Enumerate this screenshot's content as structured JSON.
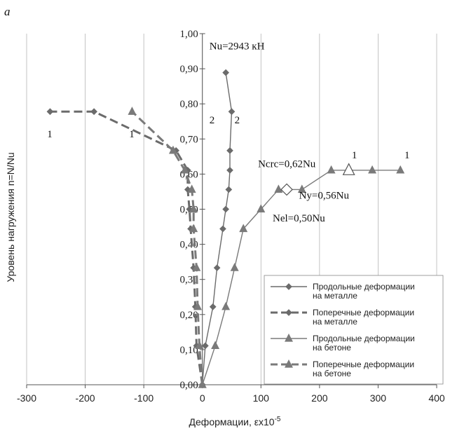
{
  "panel_label": "a",
  "chart_data": {
    "type": "line",
    "xlabel": "Деформации, εх10",
    "xlabel_sup": "-5",
    "ylabel": "Уровень нагружения n=N/Nu",
    "xlim": [
      -300,
      400
    ],
    "ylim": [
      0,
      1.0
    ],
    "x_ticks": [
      "-300",
      "-200",
      "-100",
      "0",
      "100",
      "200",
      "300",
      "400"
    ],
    "y_ticks": [
      "0,00",
      "0,10",
      "0,20",
      "0,30",
      "0,40",
      "0,50",
      "0,60",
      "0,70",
      "0,80",
      "0,90",
      "1,00"
    ],
    "grid": "x-major vertical",
    "legend_position": "lower-right",
    "series": [
      {
        "name": "Продольные деформации на металле",
        "legend_lines": [
          "Продольные деформации",
          "на металле"
        ],
        "color": "#6b6b6b",
        "line": "solid",
        "marker": "diamond",
        "points": [
          [
            0,
            0
          ],
          [
            5,
            0.111
          ],
          [
            18,
            0.222
          ],
          [
            25,
            0.333
          ],
          [
            35,
            0.444
          ],
          [
            40,
            0.5
          ],
          [
            45,
            0.556
          ],
          [
            47,
            0.611
          ],
          [
            47,
            0.667
          ],
          [
            50,
            0.778
          ],
          [
            40,
            0.889
          ]
        ]
      },
      {
        "name": "Поперечные деформации на металле",
        "legend_lines": [
          "Поперечные деформации",
          "на металле"
        ],
        "color": "#6b6b6b",
        "line": "dashed",
        "marker": "diamond",
        "points": [
          [
            0,
            0
          ],
          [
            -10,
            0.111
          ],
          [
            -12,
            0.222
          ],
          [
            -15,
            0.333
          ],
          [
            -20,
            0.444
          ],
          [
            -22,
            0.5
          ],
          [
            -25,
            0.556
          ],
          [
            -25,
            0.611
          ],
          [
            -45,
            0.667
          ],
          [
            -185,
            0.778
          ],
          [
            -260,
            0.778
          ]
        ]
      },
      {
        "name": "Продольные деформации на бетоне",
        "legend_lines": [
          "Продольные деформации",
          "на бетоне"
        ],
        "color": "#7a7a7a",
        "line": "solid",
        "marker": "triangle",
        "points": [
          [
            0,
            0
          ],
          [
            22,
            0.111
          ],
          [
            40,
            0.222
          ],
          [
            55,
            0.333
          ],
          [
            70,
            0.444
          ],
          [
            100,
            0.5
          ],
          [
            130,
            0.556
          ],
          [
            170,
            0.556
          ],
          [
            220,
            0.611
          ],
          [
            250,
            0.611
          ],
          [
            290,
            0.611
          ],
          [
            338,
            0.611
          ]
        ]
      },
      {
        "name": "Поперечные деформации на бетоне",
        "legend_lines": [
          "Поперечные деформации",
          "на бетоне"
        ],
        "color": "#7a7a7a",
        "line": "dashed",
        "marker": "triangle",
        "points": [
          [
            0,
            0
          ],
          [
            -5,
            0.111
          ],
          [
            -8,
            0.222
          ],
          [
            -10,
            0.333
          ],
          [
            -15,
            0.444
          ],
          [
            -15,
            0.5
          ],
          [
            -18,
            0.556
          ],
          [
            -30,
            0.611
          ],
          [
            -50,
            0.667
          ],
          [
            -120,
            0.778
          ]
        ]
      }
    ],
    "open_markers": [
      {
        "shape": "diamond",
        "x": 144,
        "y": 0.556
      },
      {
        "shape": "triangle",
        "x": 250,
        "y": 0.611
      }
    ],
    "annotations": [
      {
        "text": "Nu=2943 кН",
        "x": 12,
        "y": 0.955
      },
      {
        "text": "1",
        "x": -265,
        "y": 0.705
      },
      {
        "text": "1",
        "x": -125,
        "y": 0.705
      },
      {
        "text": "2",
        "x": 12,
        "y": 0.745
      },
      {
        "text": "2",
        "x": 55,
        "y": 0.745
      },
      {
        "text": "Ncrc=0,62Nu",
        "x": 95,
        "y": 0.62
      },
      {
        "text": "1",
        "x": 255,
        "y": 0.645
      },
      {
        "text": "1",
        "x": 345,
        "y": 0.645
      },
      {
        "text": "Ny=0,56Nu",
        "x": 165,
        "y": 0.53
      },
      {
        "text": "Nel=0,50Nu",
        "x": 120,
        "y": 0.465
      }
    ]
  }
}
